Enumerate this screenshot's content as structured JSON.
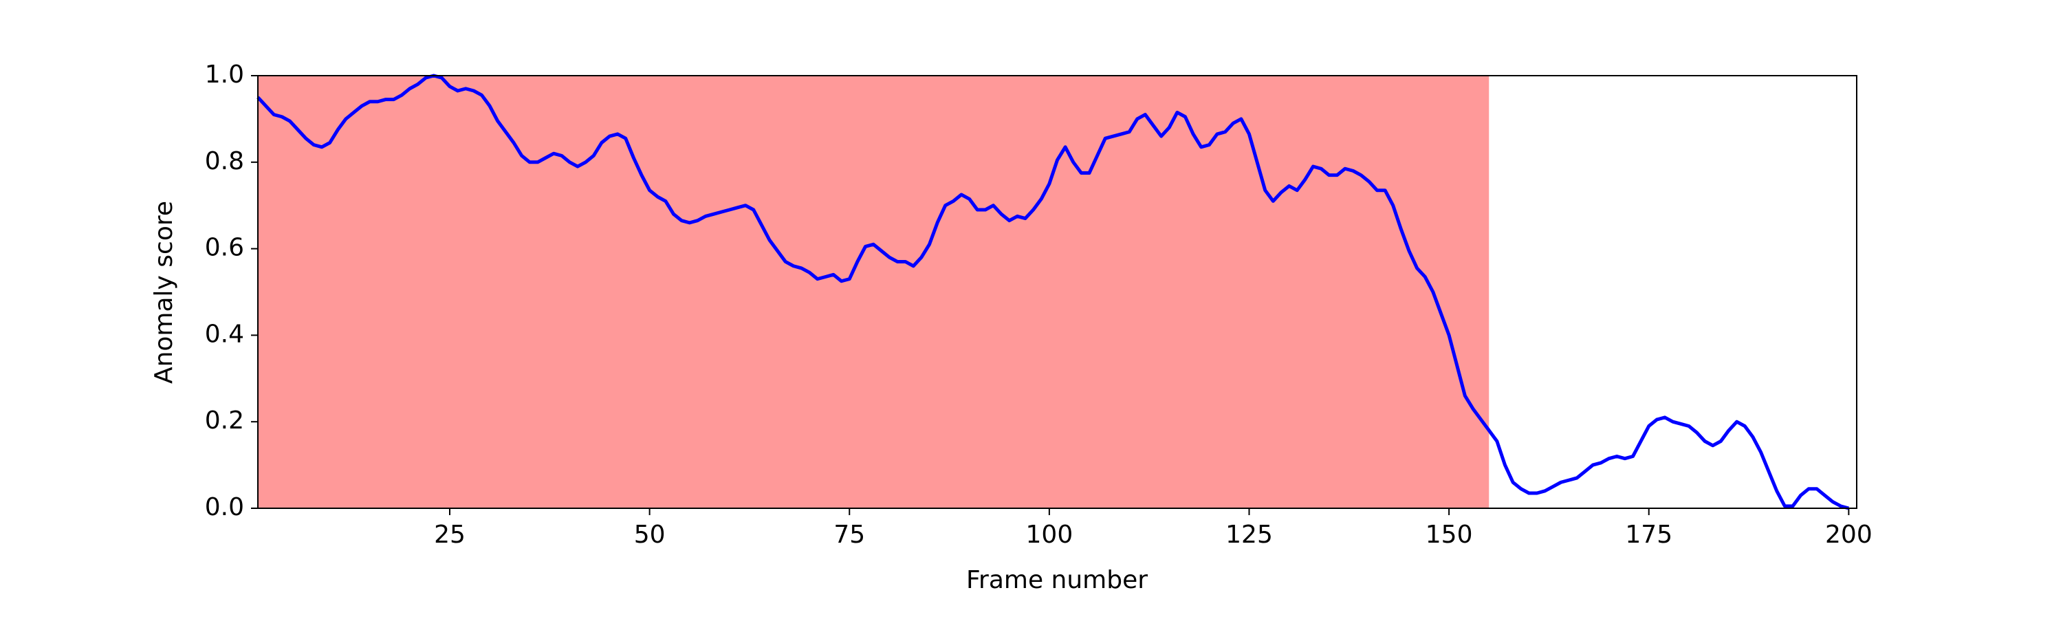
{
  "chart_data": {
    "type": "line",
    "x_label": "Frame number",
    "y_label": "Anomaly score",
    "x": [
      1,
      2,
      3,
      4,
      5,
      6,
      7,
      8,
      9,
      10,
      11,
      12,
      13,
      14,
      15,
      16,
      17,
      18,
      19,
      20,
      21,
      22,
      23,
      24,
      25,
      26,
      27,
      28,
      29,
      30,
      31,
      32,
      33,
      34,
      35,
      36,
      37,
      38,
      39,
      40,
      41,
      42,
      43,
      44,
      45,
      46,
      47,
      48,
      49,
      50,
      51,
      52,
      53,
      54,
      55,
      56,
      57,
      58,
      59,
      60,
      61,
      62,
      63,
      64,
      65,
      66,
      67,
      68,
      69,
      70,
      71,
      72,
      73,
      74,
      75,
      76,
      77,
      78,
      79,
      80,
      81,
      82,
      83,
      84,
      85,
      86,
      87,
      88,
      89,
      90,
      91,
      92,
      93,
      94,
      95,
      96,
      97,
      98,
      99,
      100,
      101,
      102,
      103,
      104,
      105,
      106,
      107,
      108,
      109,
      110,
      111,
      112,
      113,
      114,
      115,
      116,
      117,
      118,
      119,
      120,
      121,
      122,
      123,
      124,
      125,
      126,
      127,
      128,
      129,
      130,
      131,
      132,
      133,
      134,
      135,
      136,
      137,
      138,
      139,
      140,
      141,
      142,
      143,
      144,
      145,
      146,
      147,
      148,
      149,
      150,
      151,
      152,
      153,
      154,
      155,
      156,
      157,
      158,
      159,
      160,
      161,
      162,
      163,
      164,
      165,
      166,
      167,
      168,
      169,
      170,
      171,
      172,
      173,
      174,
      175,
      176,
      177,
      178,
      179,
      180,
      181,
      182,
      183,
      184,
      185,
      186,
      187,
      188,
      189,
      190,
      191,
      192,
      193,
      194,
      195,
      196,
      197,
      198,
      199,
      200
    ],
    "series": [
      {
        "color": "#0000ff",
        "values": [
          0.95,
          0.93,
          0.91,
          0.905,
          0.895,
          0.875,
          0.855,
          0.84,
          0.835,
          0.845,
          0.875,
          0.9,
          0.915,
          0.93,
          0.94,
          0.94,
          0.945,
          0.945,
          0.955,
          0.97,
          0.98,
          0.995,
          1.0,
          0.995,
          0.975,
          0.965,
          0.97,
          0.965,
          0.955,
          0.93,
          0.895,
          0.87,
          0.845,
          0.815,
          0.8,
          0.8,
          0.81,
          0.82,
          0.815,
          0.8,
          0.79,
          0.8,
          0.815,
          0.845,
          0.86,
          0.865,
          0.855,
          0.81,
          0.77,
          0.735,
          0.72,
          0.71,
          0.68,
          0.665,
          0.66,
          0.665,
          0.675,
          0.68,
          0.685,
          0.69,
          0.695,
          0.7,
          0.69,
          0.655,
          0.62,
          0.595,
          0.57,
          0.56,
          0.555,
          0.545,
          0.53,
          0.535,
          0.54,
          0.525,
          0.53,
          0.57,
          0.605,
          0.61,
          0.595,
          0.58,
          0.57,
          0.57,
          0.56,
          0.58,
          0.61,
          0.66,
          0.7,
          0.71,
          0.725,
          0.715,
          0.69,
          0.69,
          0.7,
          0.68,
          0.665,
          0.675,
          0.67,
          0.69,
          0.715,
          0.75,
          0.805,
          0.835,
          0.8,
          0.775,
          0.775,
          0.815,
          0.855,
          0.86,
          0.865,
          0.87,
          0.9,
          0.91,
          0.885,
          0.86,
          0.88,
          0.915,
          0.905,
          0.865,
          0.835,
          0.84,
          0.865,
          0.87,
          0.89,
          0.9,
          0.865,
          0.8,
          0.735,
          0.71,
          0.73,
          0.745,
          0.735,
          0.76,
          0.79,
          0.785,
          0.77,
          0.77,
          0.785,
          0.78,
          0.77,
          0.755,
          0.735,
          0.735,
          0.7,
          0.645,
          0.595,
          0.555,
          0.535,
          0.5,
          0.45,
          0.4,
          0.33,
          0.26,
          0.23,
          0.205,
          0.18,
          0.155,
          0.1,
          0.06,
          0.045,
          0.035,
          0.035,
          0.04,
          0.05,
          0.06,
          0.065,
          0.07,
          0.085,
          0.1,
          0.105,
          0.115,
          0.12,
          0.115,
          0.12,
          0.155,
          0.19,
          0.205,
          0.21,
          0.2,
          0.195,
          0.19,
          0.175,
          0.155,
          0.145,
          0.155,
          0.18,
          0.2,
          0.19,
          0.165,
          0.13,
          0.085,
          0.04,
          0.005,
          0.005,
          0.03,
          0.045,
          0.045,
          0.03,
          0.015,
          0.005,
          0.0
        ]
      }
    ],
    "highlight_span": {
      "range": [
        1,
        155
      ],
      "color": "#ff9999"
    },
    "xlim": [
      1,
      201
    ],
    "ylim": [
      0,
      1
    ],
    "xticks": [
      25,
      50,
      75,
      100,
      125,
      150,
      175,
      200
    ],
    "yticks": [
      {
        "value": 0,
        "label": "0.0"
      },
      {
        "value": 0.2,
        "label": "0.2"
      },
      {
        "value": 0.4,
        "label": "0.4"
      },
      {
        "value": 0.6,
        "label": "0.6"
      },
      {
        "value": 0.8,
        "label": "0.8"
      },
      {
        "value": 1,
        "label": "1.0"
      }
    ],
    "grid": false
  }
}
